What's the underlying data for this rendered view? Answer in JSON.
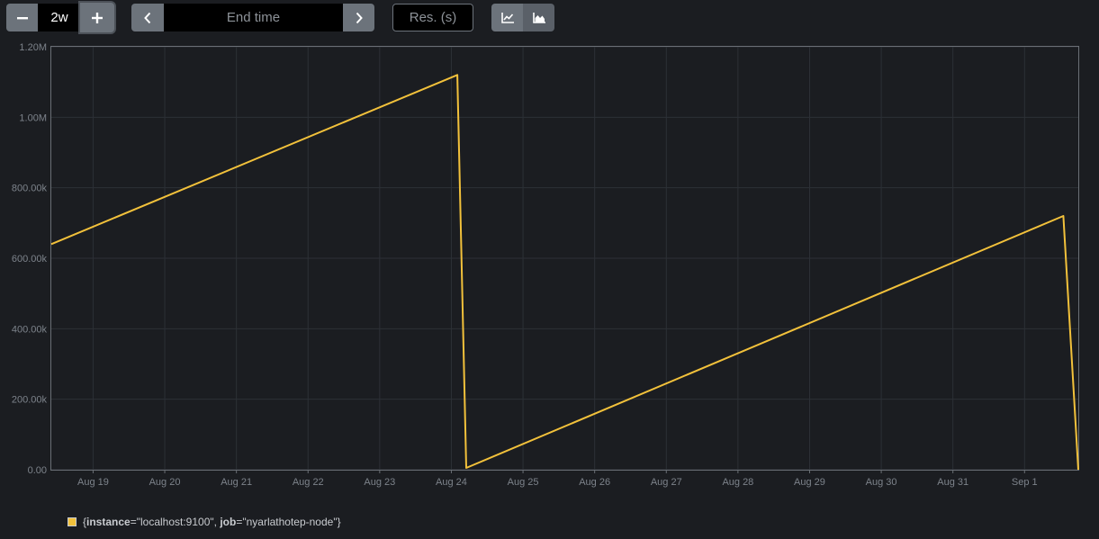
{
  "toolbar": {
    "range_value": "2w",
    "end_time_placeholder": "End time",
    "resolution_placeholder": "Res. (s)"
  },
  "colors": {
    "series": "#f2c13b",
    "background": "#1b1d21",
    "button": "#6c737b"
  },
  "icons": {
    "minus": "minus-icon",
    "plus": "plus-icon",
    "back": "chevron-left-icon",
    "forward": "chevron-right-icon",
    "lines": "line-chart-icon",
    "stacked": "area-chart-icon"
  },
  "legend": {
    "open": "{",
    "k1": "instance",
    "eq1": "=\"",
    "v1": "localhost:9100",
    "sep": "\", ",
    "k2": "job",
    "eq2": "=\"",
    "v2": "nyarlathotep-node",
    "close": "\"}"
  },
  "chart_data": {
    "type": "line",
    "x_type": "date",
    "xlim": [
      "2025-08-18T10:00",
      "2025-09-01T18:00"
    ],
    "x_ticks": [
      {
        "date": "2025-08-19",
        "label": "Aug 19"
      },
      {
        "date": "2025-08-20",
        "label": "Aug 20"
      },
      {
        "date": "2025-08-21",
        "label": "Aug 21"
      },
      {
        "date": "2025-08-22",
        "label": "Aug 22"
      },
      {
        "date": "2025-08-23",
        "label": "Aug 23"
      },
      {
        "date": "2025-08-24",
        "label": "Aug 24"
      },
      {
        "date": "2025-08-25",
        "label": "Aug 25"
      },
      {
        "date": "2025-08-26",
        "label": "Aug 26"
      },
      {
        "date": "2025-08-27",
        "label": "Aug 27"
      },
      {
        "date": "2025-08-28",
        "label": "Aug 28"
      },
      {
        "date": "2025-08-29",
        "label": "Aug 29"
      },
      {
        "date": "2025-08-30",
        "label": "Aug 30"
      },
      {
        "date": "2025-08-31",
        "label": "Aug 31"
      },
      {
        "date": "2025-09-01",
        "label": "Sep 1"
      }
    ],
    "ylim": [
      0,
      1200000
    ],
    "y_ticks": [
      {
        "value": 0,
        "label": "0.00"
      },
      {
        "value": 200000,
        "label": "200.00k"
      },
      {
        "value": 400000,
        "label": "400.00k"
      },
      {
        "value": 600000,
        "label": "600.00k"
      },
      {
        "value": 800000,
        "label": "800.00k"
      },
      {
        "value": 1000000,
        "label": "1.00M"
      },
      {
        "value": 1200000,
        "label": "1.20M"
      }
    ],
    "grid": true,
    "series": [
      {
        "color": "#f2c13b",
        "points": [
          {
            "x": "2025-08-18T10:00",
            "y": 640000
          },
          {
            "x": "2025-08-24T02:00",
            "y": 1120000
          },
          {
            "x": "2025-08-24T05:00",
            "y": 5000
          },
          {
            "x": "2025-09-01T13:00",
            "y": 720000
          },
          {
            "x": "2025-09-01T18:00",
            "y": 0
          }
        ]
      }
    ]
  }
}
